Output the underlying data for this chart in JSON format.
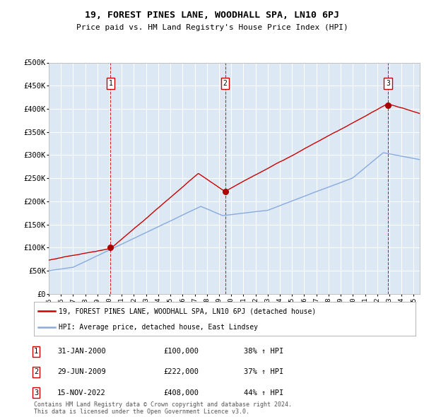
{
  "title": "19, FOREST PINES LANE, WOODHALL SPA, LN10 6PJ",
  "subtitle": "Price paid vs. HM Land Registry's House Price Index (HPI)",
  "ylabel_ticks": [
    "£0",
    "£50K",
    "£100K",
    "£150K",
    "£200K",
    "£250K",
    "£300K",
    "£350K",
    "£400K",
    "£450K",
    "£500K"
  ],
  "ytick_values": [
    0,
    50000,
    100000,
    150000,
    200000,
    250000,
    300000,
    350000,
    400000,
    450000,
    500000
  ],
  "xlim": [
    1995.0,
    2025.5
  ],
  "ylim": [
    0,
    500000
  ],
  "background_color": "#dce9f5",
  "grid_color": "#ffffff",
  "sale_dates": [
    2000.08,
    2009.5,
    2022.88
  ],
  "sale_prices": [
    100000,
    222000,
    408000
  ],
  "sale_labels": [
    "1",
    "2",
    "3"
  ],
  "vline_color": "#cc0000",
  "sale_marker_color": "#aa0000",
  "hpi_line_color": "#88aadd",
  "price_line_color": "#cc0000",
  "legend_label_price": "19, FOREST PINES LANE, WOODHALL SPA, LN10 6PJ (detached house)",
  "legend_label_hpi": "HPI: Average price, detached house, East Lindsey",
  "table_rows": [
    [
      "1",
      "31-JAN-2000",
      "£100,000",
      "38% ↑ HPI"
    ],
    [
      "2",
      "29-JUN-2009",
      "£222,000",
      "37% ↑ HPI"
    ],
    [
      "3",
      "15-NOV-2022",
      "£408,000",
      "44% ↑ HPI"
    ]
  ],
  "footer_text": "Contains HM Land Registry data © Crown copyright and database right 2024.\nThis data is licensed under the Open Government Licence v3.0.",
  "xtick_years": [
    1995,
    1996,
    1997,
    1998,
    1999,
    2000,
    2001,
    2002,
    2003,
    2004,
    2005,
    2006,
    2007,
    2008,
    2009,
    2010,
    2011,
    2012,
    2013,
    2014,
    2015,
    2016,
    2017,
    2018,
    2019,
    2020,
    2021,
    2022,
    2023,
    2024,
    2025
  ]
}
